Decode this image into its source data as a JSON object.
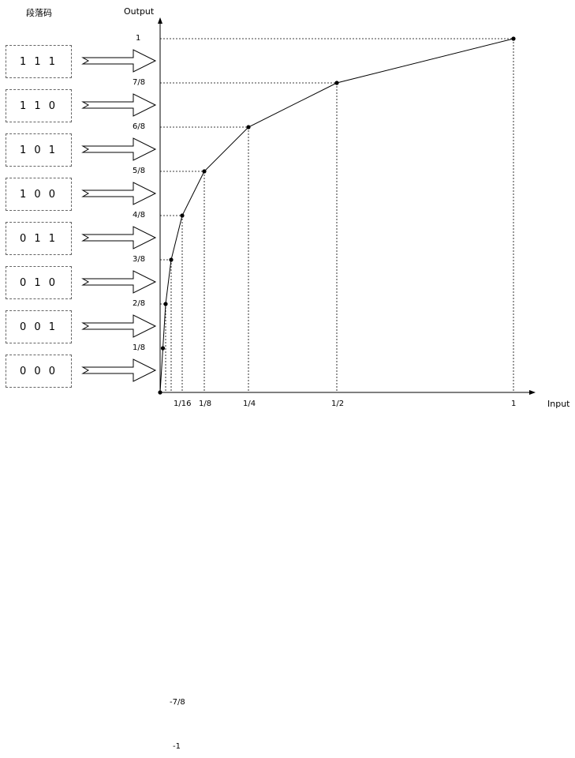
{
  "header": {
    "segment_label": "段落码",
    "y_axis_label": "Output",
    "x_axis_label": "Input"
  },
  "segment_codes": [
    "1 1 1",
    "1 1 0",
    "1 0 1",
    "1 0 0",
    "0 1 1",
    "0 1 0",
    "0 0 1",
    "0 0 0"
  ],
  "y_ticks": [
    "1",
    "7/8",
    "6/8",
    "5/8",
    "4/8",
    "3/8",
    "2/8",
    "1/8"
  ],
  "x_ticks": [
    "1/16",
    "1/8",
    "1/4",
    "1/2",
    "1"
  ],
  "negative_ticks": [
    "-7/8",
    "-1"
  ],
  "chart_data": {
    "type": "line",
    "xlabel": "Input",
    "ylabel": "Output",
    "x": [
      0,
      0.0078125,
      0.015625,
      0.03125,
      0.0625,
      0.125,
      0.25,
      0.5,
      1
    ],
    "y": [
      0,
      0.125,
      0.25,
      0.375,
      0.5,
      0.625,
      0.75,
      0.875,
      1
    ],
    "xlim": [
      0,
      1
    ],
    "ylim": [
      0,
      1
    ]
  }
}
